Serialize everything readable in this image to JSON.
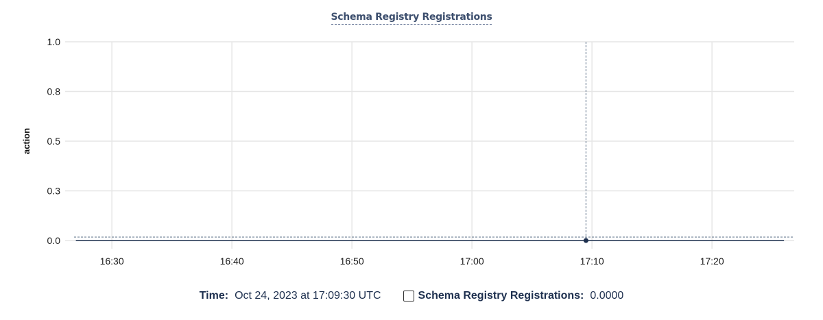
{
  "chart_data": {
    "type": "line",
    "title": "Schema Registry Registrations",
    "ylabel": "action",
    "xlabel": "",
    "ylim": [
      0,
      1
    ],
    "yticks": [
      0,
      0.25,
      0.5,
      0.75,
      1.0
    ],
    "ytick_labels": [
      "0.0",
      "0.3",
      "0.5",
      "0.8",
      "1.0"
    ],
    "xlim": [
      "16:26:51",
      "17:26:51"
    ],
    "xtick_labels": [
      "16:30",
      "16:40",
      "16:50",
      "17:00",
      "17:10",
      "17:20"
    ],
    "grid": true,
    "series": [
      {
        "name": "Schema Registry Registrations",
        "color": "#1d2f4e",
        "x": [
          "16:27:00",
          "17:09:30",
          "17:26:00"
        ],
        "values": [
          0,
          0,
          0
        ]
      }
    ],
    "hover": {
      "x": "17:09:30",
      "value": 0
    }
  },
  "tooltip": {
    "time_label": "Time:",
    "time_value": "Oct 24, 2023 at 17:09:30 UTC",
    "series_label": "Schema Registry Registrations:",
    "series_value": "0.0000"
  }
}
